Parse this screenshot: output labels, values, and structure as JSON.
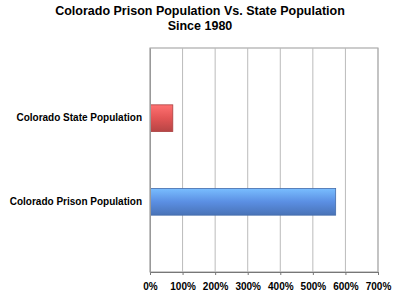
{
  "chart_data": {
    "type": "bar",
    "orientation": "horizontal",
    "title": "Colorado Prison Population Vs. State Population",
    "subtitle": "Since 1980",
    "categories": [
      "Colorado State Population",
      "Colorado Prison Population"
    ],
    "values": [
      70,
      570
    ],
    "colors": [
      "#e25555",
      "#5b8fe3"
    ],
    "xlim": [
      0,
      700
    ],
    "xticks": [
      {
        "value": 0,
        "label": "0%"
      },
      {
        "value": 100,
        "label": "100%"
      },
      {
        "value": 200,
        "label": "200%"
      },
      {
        "value": 300,
        "label": "300%"
      },
      {
        "value": 400,
        "label": "400%"
      },
      {
        "value": 500,
        "label": "500%"
      },
      {
        "value": 600,
        "label": "600%"
      },
      {
        "value": 700,
        "label": "700%"
      }
    ],
    "grid": true
  }
}
